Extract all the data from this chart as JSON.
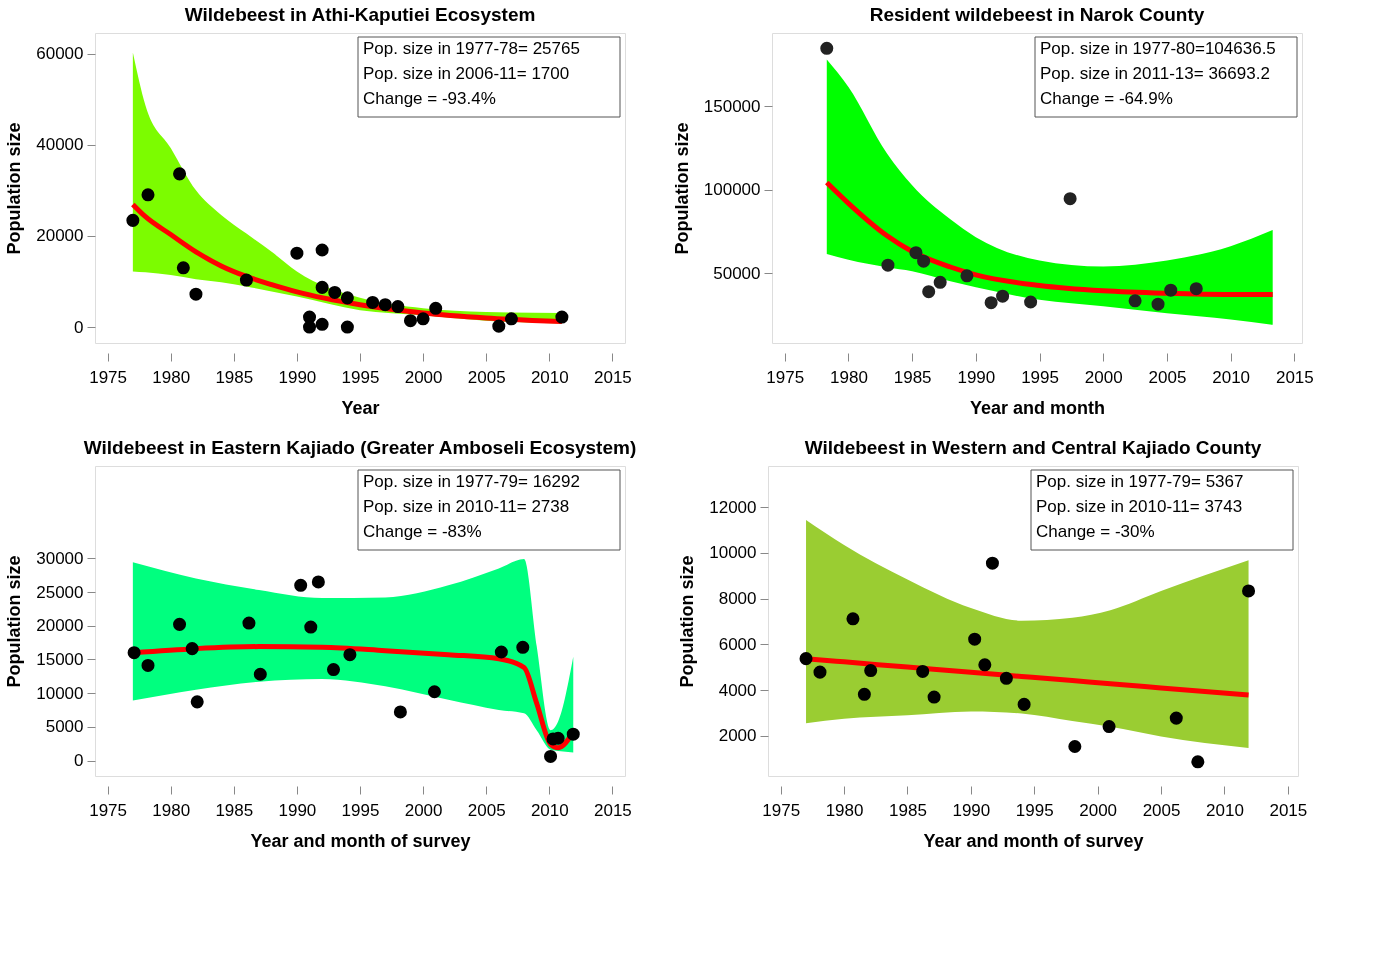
{
  "chart_data": [
    {
      "type": "scatter",
      "title": "Wildebeest in Athi-Kaputiei Ecosystem",
      "xlabel": "Year",
      "ylabel": "Population size",
      "xlim": [
        1974,
        2016
      ],
      "ylim": [
        -3500,
        64500
      ],
      "xticks": [
        1975,
        1980,
        1985,
        1990,
        1995,
        2000,
        2005,
        2010,
        2015
      ],
      "yticks": [
        0,
        20000,
        40000,
        60000
      ],
      "grid": false,
      "annotations": [
        "Pop. size in 1977-78= 25765",
        "Pop. size in 2006-11= 1700",
        "Change          = -93.4%"
      ],
      "series": [
        {
          "type": "area",
          "color": "#7cfc00",
          "x": [
            1977,
            1978,
            1980,
            1982,
            1984,
            1986,
            1988,
            1990,
            1995,
            2000,
            2005,
            2011
          ],
          "values": [
            null,
            null,
            null,
            null,
            null,
            null,
            null,
            null,
            null,
            null,
            null,
            null
          ],
          "lower": [
            12200,
            12000,
            11400,
            10500,
            9800,
            8900,
            7800,
            6700,
            3700,
            2600,
            1400,
            800
          ],
          "upper": [
            60200,
            48600,
            39300,
            30000,
            24600,
            20500,
            16500,
            12200,
            6400,
            4100,
            3300,
            3100
          ]
        },
        {
          "type": "line",
          "color": "#ff0000",
          "line_style": "solid",
          "marker": "none",
          "x": [
            1977,
            1978,
            1980,
            1982,
            1984,
            1986,
            1988,
            1990,
            1995,
            2000,
            2005,
            2011
          ],
          "values": [
            26900,
            24200,
            20300,
            16500,
            13400,
            11100,
            9300,
            7700,
            4900,
            3100,
            2000,
            1200
          ]
        },
        {
          "type": "scatter",
          "color": "#000000",
          "marker": "circle",
          "x": [
            1977,
            1978.2,
            1980.7,
            1981,
            1982,
            1986,
            1990,
            1991,
            1991,
            1992,
            1992,
            1992,
            1993,
            1994,
            1994,
            1996,
            1997,
            1998,
            1999,
            2000,
            2001,
            2006,
            2007,
            2011
          ],
          "values": [
            23400,
            29000,
            33600,
            13000,
            7200,
            10300,
            16200,
            2200,
            0,
            16900,
            8700,
            600,
            7600,
            6400,
            0,
            5400,
            4900,
            4500,
            1400,
            1800,
            4100,
            200,
            1800,
            2200
          ]
        }
      ]
    },
    {
      "type": "scatter",
      "title": "Resident wildebeest in Narok County",
      "xlabel": "Year and month",
      "ylabel": "Population size",
      "xlim": [
        1974,
        2015.6
      ],
      "ylim": [
        8000,
        194000
      ],
      "xticks": [
        1975,
        1980,
        1985,
        1990,
        1995,
        2000,
        2005,
        2010,
        2015
      ],
      "yticks": [
        50000,
        100000,
        150000
      ],
      "grid": false,
      "annotations": [
        "Pop. size in 1977-80=104636.5",
        "Pop. size in 2011-13= 36693.2",
        "Change          = -64.9%"
      ],
      "series": [
        {
          "type": "area",
          "color": "#00ff00",
          "x": [
            1978.3,
            1980,
            1983,
            1985,
            1988,
            1990,
            1995,
            2000,
            2005,
            2010,
            2013.3
          ],
          "values": [
            null,
            null,
            null,
            null,
            null,
            null,
            null,
            null,
            null,
            null,
            null
          ],
          "lower": [
            61400,
            58000,
            53500,
            51100,
            45000,
            41400,
            33900,
            30000,
            25800,
            22100,
            18900
          ],
          "upper": [
            178100,
            161600,
            122000,
            102600,
            82200,
            71500,
            57500,
            53900,
            57500,
            66100,
            75800
          ]
        },
        {
          "type": "line",
          "color": "#ff0000",
          "line_style": "solid",
          "marker": "none",
          "x": [
            1978.3,
            1980,
            1983,
            1985,
            1988,
            1990,
            1995,
            2000,
            2005,
            2010,
            2013.3
          ],
          "values": [
            104300,
            91800,
            72500,
            62900,
            53600,
            48900,
            42500,
            39300,
            37800,
            37100,
            37100
          ]
        },
        {
          "type": "scatter",
          "color": "#222222",
          "marker": "circle",
          "x": [
            1978.3,
            1983.1,
            1985.3,
            1985.9,
            1986.3,
            1987.2,
            1989.3,
            1991.2,
            1992.1,
            1994.3,
            1997.4,
            2002.5,
            2004.3,
            2005.3,
            2007.3
          ],
          "values": [
            184800,
            54700,
            62200,
            57100,
            38800,
            44400,
            48300,
            32200,
            36100,
            32600,
            94600,
            33300,
            31300,
            39700,
            40600
          ]
        }
      ]
    },
    {
      "type": "scatter",
      "title": "Wildebeest in Eastern Kajiado (Greater Amboseli Ecosystem)",
      "xlabel": "Year and month of survey",
      "ylabel": "Population size",
      "xlim": [
        1974,
        2016
      ],
      "ylim": [
        -2300,
        43700
      ],
      "xticks": [
        1975,
        1980,
        1985,
        1990,
        1995,
        2000,
        2005,
        2010,
        2015
      ],
      "yticks": [
        0,
        5000,
        10000,
        15000,
        20000,
        25000,
        30000
      ],
      "grid": false,
      "annotations": [
        "Pop. size in 1977-79= 16292",
        "Pop. size in 2010-11= 2738",
        "Change          = -83%"
      ],
      "series": [
        {
          "type": "area",
          "color": "#00ff7f",
          "x": [
            1977,
            1982,
            1987,
            1992,
            1997,
            2002,
            2006,
            2008,
            2009,
            2010.1,
            2010.7,
            2011.9
          ],
          "values": [
            null,
            null,
            null,
            null,
            null,
            null,
            null,
            null,
            null,
            null,
            null,
            null
          ],
          "lower": [
            8900,
            10500,
            11700,
            12100,
            11000,
            9000,
            7500,
            7000,
            4500,
            1600,
            1400,
            1200
          ],
          "upper": [
            29400,
            27000,
            25300,
            24100,
            24200,
            26000,
            28500,
            29900,
            17000,
            4500,
            5800,
            15400
          ]
        },
        {
          "type": "line",
          "color": "#ff0000",
          "line_style": "solid",
          "marker": "none",
          "x": [
            1977,
            1982,
            1987,
            1992,
            1997,
            2002,
            2006,
            2008,
            2009,
            2010.1,
            2010.7,
            2011.9
          ],
          "values": [
            16000,
            16600,
            16900,
            16800,
            16300,
            15700,
            15100,
            13800,
            8500,
            2400,
            1900,
            4200
          ]
        },
        {
          "type": "scatter",
          "color": "#000000",
          "marker": "circle",
          "x": [
            1977.1,
            1978.2,
            1980.7,
            1981.7,
            1982.1,
            1986.2,
            1987.1,
            1990.3,
            1991.1,
            1991.7,
            1992.9,
            1994.2,
            1998.2,
            2000.9,
            2006.2,
            2007.9,
            2010.1,
            2010.3,
            2010.7,
            2011.9
          ],
          "values": [
            16000,
            14100,
            20200,
            16600,
            8700,
            20400,
            12800,
            26000,
            19800,
            26500,
            13500,
            15700,
            7200,
            10200,
            16100,
            16800,
            600,
            3200,
            3300,
            3900
          ]
        }
      ]
    },
    {
      "type": "scatter",
      "title": "Wildebeest in Western and Central Kajiado County",
      "xlabel": "Year and month of survey",
      "ylabel": "Population size",
      "xlim": [
        1974,
        2015.8
      ],
      "ylim": [
        250,
        13800
      ],
      "xticks": [
        1975,
        1980,
        1985,
        1990,
        1995,
        2000,
        2005,
        2010,
        2015
      ],
      "yticks": [
        2000,
        4000,
        6000,
        8000,
        10000,
        12000
      ],
      "grid": false,
      "annotations": [
        "Pop. size in 1977-79= 5367",
        "Pop. size in 2010-11= 3743",
        "Change          = -30%"
      ],
      "series": [
        {
          "type": "area",
          "color": "#9acd32",
          "x": [
            1977,
            1980,
            1985,
            1990,
            1994,
            1998,
            2001,
            2005,
            2011.9
          ],
          "values": [
            null,
            null,
            null,
            null,
            null,
            null,
            null,
            null,
            null
          ],
          "lower": [
            2560,
            2750,
            2900,
            3070,
            2980,
            2650,
            2400,
            1980,
            1470
          ],
          "upper": [
            11440,
            10350,
            8840,
            7590,
            7040,
            7170,
            7500,
            8340,
            9680
          ]
        },
        {
          "type": "line",
          "color": "#ff0000",
          "line_style": "solid",
          "marker": "none",
          "x": [
            1977,
            1980,
            1985,
            1990,
            1994,
            1998,
            2001,
            2005,
            2011.9
          ],
          "values": [
            5380,
            5240,
            5010,
            4780,
            4600,
            4420,
            4280,
            4100,
            3790
          ]
        },
        {
          "type": "scatter",
          "color": "#000000",
          "marker": "circle",
          "x": [
            1977,
            1978.1,
            1980.7,
            1981.6,
            1982.1,
            1986.2,
            1987.1,
            1990.3,
            1991.1,
            1991.7,
            1992.8,
            1994.2,
            1998.2,
            2000.9,
            2006.2,
            2007.9,
            2011.9
          ],
          "values": [
            5380,
            4790,
            7120,
            3820,
            4860,
            4820,
            3700,
            6230,
            5110,
            9550,
            4520,
            3380,
            1540,
            2410,
            2780,
            870,
            8340
          ]
        }
      ]
    }
  ]
}
